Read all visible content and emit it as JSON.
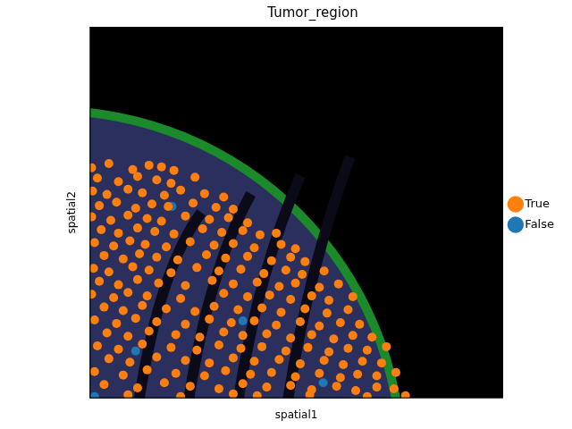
{
  "chart_data": {
    "type": "scatter",
    "title": "Tumor_region",
    "x_label": "spatial1",
    "y_label": "spatial2",
    "xlim": [
      0,
      432
    ],
    "ylim": [
      0,
      432
    ],
    "tick_labels": false,
    "grid": false,
    "legend": "right",
    "series": [
      {
        "name": "False",
        "color": "#1f77b4",
        "marker": "circle",
        "x": [
          86,
          244,
          5,
          48,
          160
        ],
        "y": [
          223,
          18,
          2,
          55,
          90
        ]
      },
      {
        "name": "True",
        "color": "#ff7f0e",
        "marker": "circle",
        "x": [
          2,
          20,
          45,
          62,
          75,
          88,
          8,
          30,
          50,
          70,
          85,
          110,
          3,
          18,
          40,
          55,
          78,
          95,
          120,
          140,
          10,
          28,
          48,
          65,
          82,
          108,
          132,
          150,
          2,
          22,
          40,
          60,
          75,
          100,
          125,
          145,
          165,
          12,
          30,
          50,
          68,
          88,
          118,
          138,
          160,
          178,
          195,
          5,
          25,
          42,
          58,
          80,
          105,
          130,
          150,
          172,
          200,
          215,
          15,
          35,
          52,
          70,
          92,
          122,
          142,
          165,
          190,
          210,
          225,
          4,
          20,
          45,
          62,
          85,
          112,
          135,
          158,
          182,
          205,
          222,
          245,
          10,
          30,
          50,
          72,
          100,
          128,
          150,
          175,
          198,
          215,
          240,
          260,
          2,
          25,
          40,
          60,
          95,
          140,
          165,
          188,
          210,
          232,
          250,
          275,
          15,
          35,
          55,
          80,
          110,
          130,
          155,
          180,
          200,
          225,
          248,
          270,
          5,
          28,
          48,
          70,
          100,
          125,
          148,
          172,
          195,
          220,
          240,
          262,
          282,
          18,
          40,
          62,
          90,
          115,
          140,
          160,
          185,
          210,
          232,
          255,
          275,
          295,
          8,
          30,
          55,
          85,
          112,
          135,
          158,
          180,
          205,
          228,
          250,
          270,
          290,
          310,
          20,
          42,
          70,
          100,
          125,
          150,
          172,
          198,
          220,
          245,
          265,
          285,
          305,
          5,
          35,
          60,
          90,
          120,
          142,
          168,
          190,
          215,
          240,
          262,
          280,
          300,
          320,
          15,
          50,
          78,
          105,
          135,
          160,
          185,
          210,
          232,
          258,
          278,
          300,
          318,
          40,
          95,
          150,
          175,
          230,
          290,
          330
        ],
        "y": [
          268,
          273,
          266,
          271,
          269,
          265,
          256,
          252,
          258,
          254,
          250,
          257,
          241,
          237,
          243,
          239,
          236,
          242,
          238,
          234,
          224,
          228,
          221,
          226,
          223,
          227,
          222,
          220,
          211,
          207,
          213,
          209,
          206,
          212,
          208,
          210,
          204,
          196,
          192,
          198,
          194,
          191,
          197,
          193,
          195,
          190,
          192,
          181,
          177,
          183,
          179,
          176,
          182,
          178,
          180,
          175,
          179,
          174,
          166,
          162,
          168,
          164,
          161,
          167,
          163,
          165,
          160,
          164,
          159,
          151,
          147,
          153,
          149,
          146,
          152,
          148,
          150,
          145,
          149,
          144,
          148,
          136,
          132,
          138,
          134,
          131,
          137,
          133,
          135,
          130,
          134,
          129,
          133,
          121,
          117,
          123,
          119,
          116,
          122,
          118,
          120,
          115,
          119,
          114,
          118,
          106,
          102,
          108,
          104,
          101,
          107,
          103,
          105,
          100,
          104,
          99,
          103,
          91,
          87,
          93,
          89,
          86,
          92,
          88,
          90,
          85,
          89,
          84,
          88,
          86,
          76,
          72,
          78,
          74,
          71,
          77,
          73,
          75,
          70,
          74,
          69,
          73,
          71,
          61,
          57,
          63,
          59,
          56,
          62,
          58,
          60,
          55,
          59,
          54,
          58,
          56,
          60,
          46,
          42,
          48,
          44,
          41,
          47,
          43,
          45,
          40,
          44,
          39,
          43,
          41,
          31,
          27,
          33,
          29,
          26,
          32,
          28,
          30,
          25,
          29,
          24,
          28,
          26,
          30,
          16,
          12,
          18,
          14,
          11,
          17,
          13,
          15,
          10,
          14,
          9,
          13,
          11,
          4,
          2,
          5,
          3,
          4,
          2,
          3
        ]
      }
    ]
  }
}
